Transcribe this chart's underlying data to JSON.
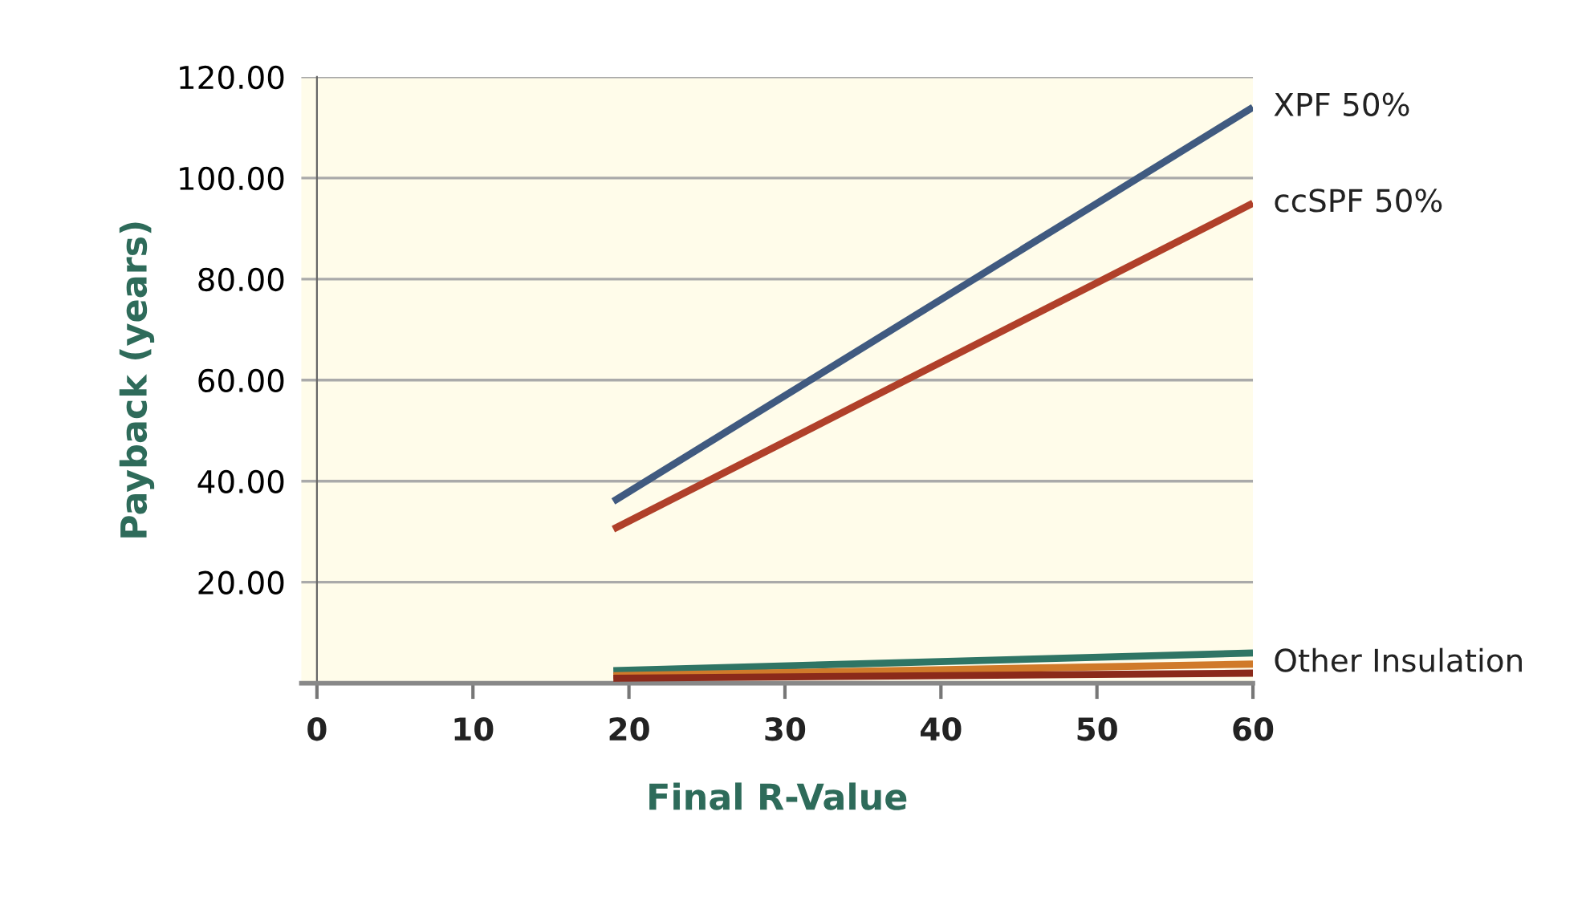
{
  "chart_data": {
    "type": "line",
    "xlabel": "Final R-Value",
    "ylabel": "Payback (years)",
    "x": [
      19,
      60
    ],
    "series": [
      {
        "name": "XPF 50%",
        "color": "#405a80",
        "values": [
          36,
          114
        ]
      },
      {
        "name": "ccSPF 50%",
        "color": "#b0402a",
        "values": [
          30.5,
          95
        ]
      },
      {
        "color": "#2f7565",
        "values": [
          2.5,
          6
        ]
      },
      {
        "color": "#d07a2a",
        "values": [
          1.5,
          3.8
        ]
      },
      {
        "color": "#8b2a1a",
        "values": [
          1,
          2
        ]
      }
    ],
    "annotations": [
      {
        "text": "Other Insulation",
        "x": 60,
        "y": 4
      }
    ],
    "xlim": [
      -1,
      60
    ],
    "ylim": [
      0,
      120
    ],
    "xticks": [
      0,
      10,
      20,
      30,
      40,
      50,
      60
    ],
    "yticks": [
      {
        "value": 20,
        "label": "20.00"
      },
      {
        "value": 40,
        "label": "40.00"
      },
      {
        "value": 60,
        "label": "60.00"
      },
      {
        "value": 80,
        "label": "80.00"
      },
      {
        "value": 100,
        "label": "100.00"
      },
      {
        "value": 120,
        "label": "120.00"
      }
    ],
    "grid": "y",
    "legend": false,
    "marker": "none",
    "line_style": "solid"
  }
}
